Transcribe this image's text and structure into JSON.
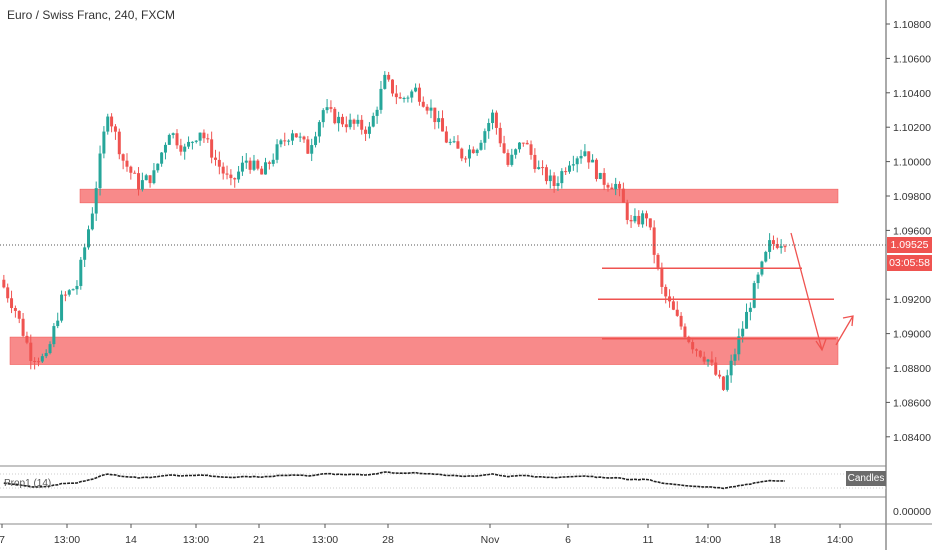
{
  "header": {
    "title": "Euro / Swiss Franc, 240, FXCM"
  },
  "price_axis": {
    "labels": [
      "1.10800",
      "1.10600",
      "1.10400",
      "1.10200",
      "1.10000",
      "1.09800",
      "1.09600",
      "1.09200",
      "1.09000",
      "1.08800",
      "1.08600",
      "1.08400"
    ],
    "values": [
      1.108,
      1.106,
      1.104,
      1.102,
      1.1,
      1.098,
      1.096,
      1.092,
      1.09,
      1.088,
      1.086,
      1.084
    ],
    "current_price": "1.09525",
    "current_value": 1.09525,
    "countdown": "03:05:58",
    "indicator_zero": "0.00000"
  },
  "time_axis": {
    "labels": [
      "7",
      "13:00",
      "14",
      "13:00",
      "21",
      "13:00",
      "28",
      "Nov",
      "6",
      "11",
      "14:00",
      "18",
      "14:00"
    ]
  },
  "indicator": {
    "label": "Prop1 (14)",
    "mode_button": "Candles"
  },
  "chart_data": {
    "type": "candlestick",
    "symbol": "EURCHF",
    "timeframe": "240",
    "closes": [
      1.09313,
      1.09139,
      1.08877,
      1.08848,
      1.09196,
      1.09284,
      1.09719,
      1.103,
      1.1001,
      1.09865,
      1.09923,
      1.10184,
      1.10068,
      1.10184,
      1.1001,
      1.09865,
      1.1001,
      1.09923,
      1.10068,
      1.10184,
      1.10068,
      1.103,
      1.10242,
      1.10213,
      1.10184,
      1.10475,
      1.10358,
      1.10417,
      1.103,
      1.10126,
      1.10039,
      1.10097,
      1.10271,
      1.09981,
      1.10126,
      1.09952,
      1.09865,
      1.1001,
      1.10068,
      1.09894,
      1.09865,
      1.09632,
      1.0969,
      1.09255,
      1.0908,
      1.08935,
      1.08848,
      1.08674,
      1.08964,
      1.09255,
      1.09516,
      1.09545
    ],
    "zones": [
      {
        "from": 1.0976,
        "to": 1.0984
      },
      {
        "from": 1.0882,
        "to": 1.0898
      }
    ],
    "levels": [
      1.0938,
      1.092,
      1.0897
    ],
    "colors": {
      "up": "#26a69a",
      "down": "#ef5350",
      "zone": "#f88a8a"
    }
  }
}
